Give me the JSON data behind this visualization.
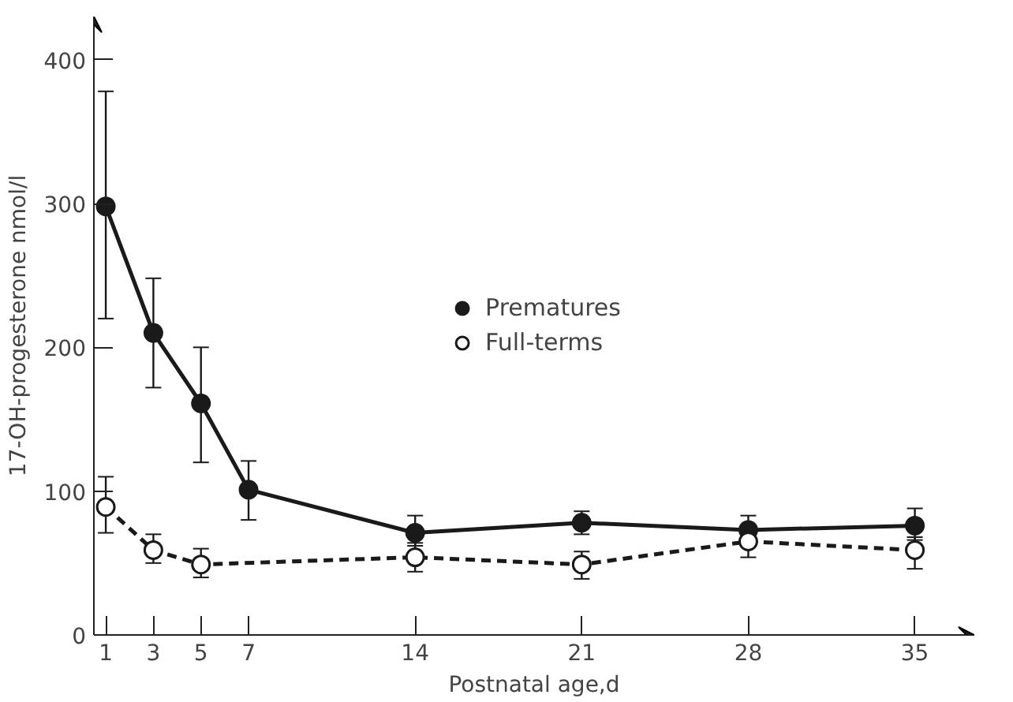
{
  "chart_data": {
    "type": "line",
    "xlabel": "Postnatal age,d",
    "ylabel": "17-OH-progesterone nmol/l",
    "x": [
      1,
      3,
      5,
      7,
      14,
      21,
      28,
      35
    ],
    "series": [
      {
        "name": "Prematures",
        "color": "#1a1a1a",
        "line_style": "solid",
        "values": [
          298,
          210,
          161,
          101,
          71,
          78,
          73,
          76
        ],
        "errors": [
          [
            220,
            378
          ],
          [
            172,
            248
          ],
          [
            120,
            200
          ],
          [
            80,
            121
          ],
          [
            62,
            83
          ],
          [
            70,
            86
          ],
          [
            73,
            83
          ],
          [
            66,
            88
          ]
        ]
      },
      {
        "name": "Full-terms",
        "color": "#1a1a1a",
        "line_style": "dashed",
        "x": [
          1,
          3,
          5,
          14,
          21,
          28,
          35
        ],
        "values": [
          89,
          59,
          49,
          54,
          49,
          65,
          59
        ],
        "errors": [
          [
            71,
            110
          ],
          [
            50,
            70
          ],
          [
            40,
            60
          ],
          [
            44,
            64
          ],
          [
            39,
            58
          ],
          [
            54,
            73
          ],
          [
            46,
            68
          ]
        ]
      }
    ],
    "xlim": [
      0.5,
      37.5
    ],
    "ylim": [
      0,
      430
    ],
    "xticks": [
      1,
      3,
      5,
      7,
      14,
      21,
      28,
      35
    ],
    "yticks": [
      0,
      100,
      200,
      300,
      400
    ],
    "marker": "circle",
    "grid": false,
    "legend": "center"
  }
}
